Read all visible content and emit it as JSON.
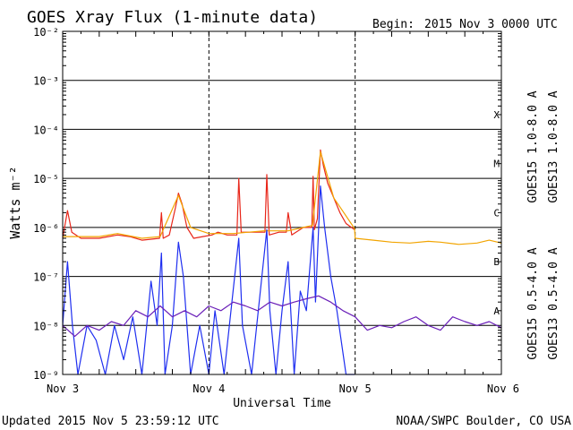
{
  "header": {
    "title": "GOES Xray Flux (1-minute data)",
    "begin_label": "Begin:",
    "begin_value": "2015 Nov 3 0000 UTC"
  },
  "footer": {
    "updated": "Updated 2015 Nov  5 23:59:12 UTC",
    "credit": "NOAA/SWPC Boulder, CO USA"
  },
  "colors": {
    "goes15_long": "#e8261a",
    "goes13_long": "#f2a400",
    "goes15_short": "#1f2ff0",
    "goes13_short": "#6a1fb8",
    "grid": "#000000"
  },
  "chart_data": {
    "type": "line",
    "xlabel": "Universal Time",
    "ylabel": "Watts m⁻²",
    "y_scale": "log",
    "ylim": [
      1e-09,
      0.01
    ],
    "xlim": [
      0,
      72
    ],
    "x_ticks": [
      {
        "label": "Nov 3",
        "hour": 0
      },
      {
        "label": "Nov 4",
        "hour": 24
      },
      {
        "label": "Nov 5",
        "hour": 48
      },
      {
        "label": "Nov 6",
        "hour": 72
      }
    ],
    "y_ticks": [
      {
        "label": "10⁻⁹",
        "value": 1e-09
      },
      {
        "label": "10⁻⁸",
        "value": 1e-08
      },
      {
        "label": "10⁻⁷",
        "value": 1e-07
      },
      {
        "label": "10⁻⁶",
        "value": 1e-06
      },
      {
        "label": "10⁻⁵",
        "value": 1e-05
      },
      {
        "label": "10⁻⁴",
        "value": 0.0001
      },
      {
        "label": "10⁻³",
        "value": 0.001
      },
      {
        "label": "10⁻²",
        "value": 0.01
      }
    ],
    "flare_classes": [
      {
        "label": "A",
        "value": 2e-08
      },
      {
        "label": "B",
        "value": 2e-07
      },
      {
        "label": "C",
        "value": 2e-06
      },
      {
        "label": "M",
        "value": 2e-05
      },
      {
        "label": "X",
        "value": 0.0002
      }
    ],
    "grid": true,
    "legend_position": "right",
    "series": [
      {
        "name": "GOES15 1.0-8.0 A",
        "color_key": "goes15_long",
        "points": [
          [
            0,
            6e-07
          ],
          [
            0.8,
            2.2e-06
          ],
          [
            1.5,
            8e-07
          ],
          [
            3,
            6e-07
          ],
          [
            6,
            6e-07
          ],
          [
            9,
            7e-07
          ],
          [
            11,
            6.5e-07
          ],
          [
            13,
            5.5e-07
          ],
          [
            15.9,
            6e-07
          ],
          [
            16.2,
            2e-06
          ],
          [
            16.5,
            6e-07
          ],
          [
            17.5,
            7e-07
          ],
          [
            18.5,
            2.5e-06
          ],
          [
            19.0,
            5e-06
          ],
          [
            19.6,
            3e-06
          ],
          [
            20.4,
            1e-06
          ],
          [
            21.5,
            6e-07
          ],
          [
            23,
            6.5e-07
          ],
          [
            24.5,
            7e-07
          ],
          [
            25.5,
            8e-07
          ],
          [
            27,
            7e-07
          ],
          [
            28.6,
            7e-07
          ],
          [
            28.9,
            1e-05
          ],
          [
            29.3,
            8e-07
          ],
          [
            31,
            8e-07
          ],
          [
            33.2,
            8e-07
          ],
          [
            33.5,
            1.2e-05
          ],
          [
            33.9,
            7e-07
          ],
          [
            35.5,
            8e-07
          ],
          [
            36.7,
            8e-07
          ],
          [
            37,
            2e-06
          ],
          [
            37.6,
            7e-07
          ],
          [
            39.5,
            1e-06
          ],
          [
            40.9,
            1e-06
          ],
          [
            41.1,
            1.1e-05
          ],
          [
            41.3,
            9e-07
          ],
          [
            41.8,
            1.5e-06
          ],
          [
            42.3,
            3.8e-05
          ],
          [
            42.8,
            1.8e-05
          ],
          [
            43.5,
            8e-06
          ],
          [
            44.5,
            4e-06
          ],
          [
            45.5,
            2e-06
          ],
          [
            46.5,
            1.2e-06
          ],
          [
            47.9,
            9e-07
          ]
        ]
      },
      {
        "name": "GOES13 1.0-8.0 A",
        "color_key": "goes13_long",
        "points": [
          [
            0,
            6.5e-07
          ],
          [
            3,
            6.5e-07
          ],
          [
            6,
            6.5e-07
          ],
          [
            9,
            7.5e-07
          ],
          [
            13,
            6e-07
          ],
          [
            16,
            6.5e-07
          ],
          [
            19,
            4.5e-06
          ],
          [
            21,
            1e-06
          ],
          [
            24,
            7.5e-07
          ],
          [
            28,
            7.5e-07
          ],
          [
            33,
            8.5e-07
          ],
          [
            37,
            8.5e-07
          ],
          [
            41,
            1.1e-06
          ],
          [
            42.3,
            3.5e-05
          ],
          [
            44.5,
            4e-06
          ],
          [
            47.9,
            9.5e-07
          ],
          [
            48,
            6e-07
          ],
          [
            51,
            5.5e-07
          ],
          [
            54,
            5e-07
          ],
          [
            57,
            4.8e-07
          ],
          [
            60,
            5.2e-07
          ],
          [
            62,
            5e-07
          ],
          [
            65,
            4.5e-07
          ],
          [
            68,
            4.8e-07
          ],
          [
            70,
            5.5e-07
          ],
          [
            72,
            4.8e-07
          ]
        ]
      },
      {
        "name": "GOES15 0.5-4.0 A",
        "color_key": "goes15_short",
        "points": [
          [
            0,
            1e-08
          ],
          [
            0.8,
            2e-07
          ],
          [
            1.6,
            1e-08
          ],
          [
            2.5,
            1e-09
          ],
          [
            4,
            1e-08
          ],
          [
            5.5,
            5e-09
          ],
          [
            7,
            1e-09
          ],
          [
            8.5,
            1e-08
          ],
          [
            10,
            2e-09
          ],
          [
            11.5,
            1.5e-08
          ],
          [
            13,
            1e-09
          ],
          [
            14.5,
            8e-08
          ],
          [
            15.5,
            1e-08
          ],
          [
            16.2,
            3e-07
          ],
          [
            16.8,
            1e-09
          ],
          [
            18,
            1e-08
          ],
          [
            19,
            5e-07
          ],
          [
            19.8,
            1e-07
          ],
          [
            21,
            1e-09
          ],
          [
            22.5,
            1e-08
          ],
          [
            24,
            1e-09
          ],
          [
            25,
            2e-08
          ],
          [
            26.5,
            1e-09
          ],
          [
            28.9,
            6e-07
          ],
          [
            29.5,
            1e-08
          ],
          [
            31,
            1e-09
          ],
          [
            33.5,
            9e-07
          ],
          [
            34,
            2e-08
          ],
          [
            35,
            1e-09
          ],
          [
            36,
            2e-08
          ],
          [
            37,
            2e-07
          ],
          [
            38,
            1e-09
          ],
          [
            39,
            5e-08
          ],
          [
            40,
            2e-08
          ],
          [
            41.1,
            1e-06
          ],
          [
            41.5,
            3e-08
          ],
          [
            42.3,
            7e-06
          ],
          [
            43,
            1e-06
          ],
          [
            44,
            1e-07
          ],
          [
            45,
            2e-08
          ],
          [
            46.5,
            1e-09
          ],
          [
            47.9,
            1e-09
          ]
        ]
      },
      {
        "name": "GOES13 0.5-4.0 A",
        "color_key": "goes13_short",
        "points": [
          [
            0,
            1e-08
          ],
          [
            2,
            6e-09
          ],
          [
            4,
            1e-08
          ],
          [
            6,
            8e-09
          ],
          [
            8,
            1.2e-08
          ],
          [
            10,
            1e-08
          ],
          [
            12,
            2e-08
          ],
          [
            14,
            1.5e-08
          ],
          [
            16,
            2.5e-08
          ],
          [
            18,
            1.5e-08
          ],
          [
            20,
            2e-08
          ],
          [
            22,
            1.5e-08
          ],
          [
            24,
            2.5e-08
          ],
          [
            26,
            2e-08
          ],
          [
            28,
            3e-08
          ],
          [
            30,
            2.5e-08
          ],
          [
            32,
            2e-08
          ],
          [
            34,
            3e-08
          ],
          [
            36,
            2.5e-08
          ],
          [
            38,
            3e-08
          ],
          [
            40,
            3.5e-08
          ],
          [
            42,
            4e-08
          ],
          [
            44,
            3e-08
          ],
          [
            46,
            2e-08
          ],
          [
            48,
            1.5e-08
          ],
          [
            50,
            8e-09
          ],
          [
            52,
            1e-08
          ],
          [
            54,
            9e-09
          ],
          [
            56,
            1.2e-08
          ],
          [
            58,
            1.5e-08
          ],
          [
            60,
            1e-08
          ],
          [
            62,
            8e-09
          ],
          [
            64,
            1.5e-08
          ],
          [
            66,
            1.2e-08
          ],
          [
            68,
            1e-08
          ],
          [
            70,
            1.2e-08
          ],
          [
            72,
            9e-09
          ]
        ]
      }
    ]
  }
}
